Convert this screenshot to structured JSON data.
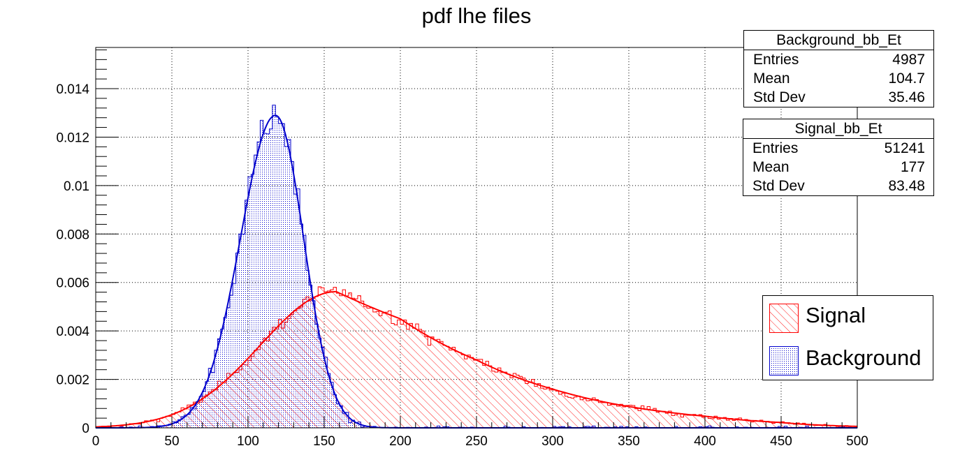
{
  "colors": {
    "signal": "#ff0000",
    "background": "#0000cc",
    "axis": "#000000",
    "grid": "#000000"
  },
  "stats": [
    {
      "title": "Background_bb_Et",
      "rows": [
        {
          "label": "Entries",
          "value": "4987"
        },
        {
          "label": "Mean",
          "value": "104.7"
        },
        {
          "label": "Std Dev",
          "value": "35.46"
        }
      ]
    },
    {
      "title": "Signal_bb_Et",
      "rows": [
        {
          "label": "Entries",
          "value": "51241"
        },
        {
          "label": "Mean",
          "value": "177"
        },
        {
          "label": "Std Dev",
          "value": "83.48"
        }
      ]
    }
  ],
  "legend": {
    "signal": "Signal",
    "background": "Background",
    "placement": "right"
  },
  "chart_data": {
    "type": "histogram",
    "title": "pdf lhe files",
    "xlabel": "",
    "ylabel": "",
    "xlim": [
      0,
      500
    ],
    "ylim": [
      0,
      0.0157
    ],
    "grid": true,
    "bin_width": 2,
    "x_ticks": [
      0,
      50,
      100,
      150,
      200,
      250,
      300,
      350,
      400,
      450,
      500
    ],
    "y_ticks": [
      0,
      0.002,
      0.004,
      0.006,
      0.008,
      0.01,
      0.012,
      0.014
    ],
    "y_tick_labels": [
      "0",
      "0.002",
      "0.004",
      "0.006",
      "0.008",
      "0.01",
      "0.012",
      "0.014"
    ],
    "series": [
      {
        "name": "Signal",
        "key": "signal",
        "fill": "hatch-diagonal",
        "fit": {
          "peak": 0.00562,
          "mode": 158,
          "sigma_left": 50,
          "tail_points": [
            [
              158,
              0.00562
            ],
            [
              200,
              0.0045
            ],
            [
              250,
              0.0028
            ],
            [
              300,
              0.0016
            ],
            [
              350,
              0.00088
            ],
            [
              400,
              0.00048
            ],
            [
              450,
              0.00022
            ],
            [
              500,
              6e-05
            ]
          ]
        },
        "values": []
      },
      {
        "name": "Background",
        "key": "background",
        "fill": "hatch-dots",
        "fit": {
          "peak": 0.0129,
          "mode": 118,
          "sigma_left": 23,
          "sigma_right": 18.5
        },
        "values": []
      }
    ]
  }
}
